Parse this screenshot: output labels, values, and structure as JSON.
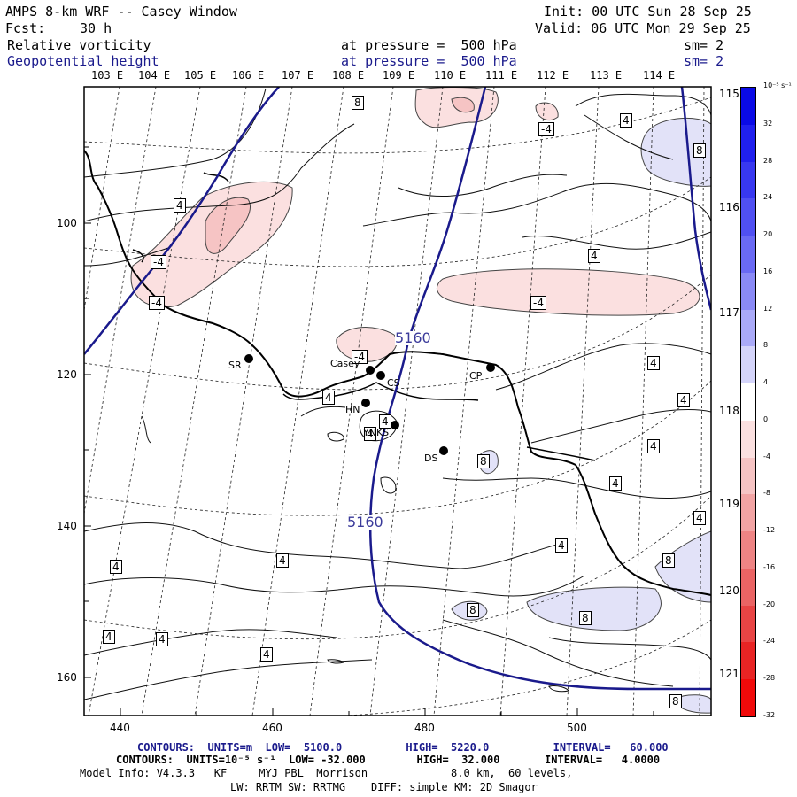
{
  "header": {
    "title": "AMPS 8-km WRF -- Casey Window",
    "init": "Init: 00 UTC Sun 28 Sep 25",
    "fcst_label": "Fcst:",
    "fcst_value": "30 h",
    "valid": "Valid: 06 UTC Mon 29 Sep 25",
    "field1": "Relative vorticity",
    "field1_pressure": "at pressure =  500 hPa",
    "field1_sm": "sm= 2",
    "field2": "Geopotential height",
    "field2_pressure": "at pressure =  500 hPa",
    "field2_sm": "sm= 2"
  },
  "lon_top": [
    "103 E",
    "104 E",
    "105 E",
    "106 E",
    "107 E",
    "108 E",
    "109 E",
    "110 E",
    "111 E",
    "112 E",
    "113 E",
    "114 E"
  ],
  "lon_right": [
    "115 E",
    "116 E",
    "117 E",
    "118 E",
    "119 E",
    "120 E",
    "121 E"
  ],
  "y_ticks": [
    "100",
    "120",
    "140",
    "160"
  ],
  "x_ticks": [
    "440",
    "460",
    "480",
    "500"
  ],
  "colorbar": {
    "unit": "10⁻⁵ s⁻¹",
    "labels": [
      "32",
      "28",
      "24",
      "20",
      "16",
      "12",
      "8",
      "4",
      "0",
      "-4",
      "-8",
      "-12",
      "-16",
      "-20",
      "-24",
      "-28",
      "-32"
    ],
    "colors": [
      "#0a0ae6",
      "#2020ee",
      "#3838f0",
      "#5050f2",
      "#6a6af4",
      "#8a8af6",
      "#aaaaf8",
      "#d4d4fa",
      "#ffffff",
      "#fbe0e0",
      "#f6c4c4",
      "#f2a4a4",
      "#ee8484",
      "#ea6464",
      "#e84444",
      "#e82424",
      "#f00a0a"
    ]
  },
  "contour_labels": {
    "vort": [
      "8",
      "-4",
      "4",
      "8",
      "-4",
      "4",
      "-4",
      "4",
      "-4",
      "4",
      "-4",
      "4",
      "4",
      "4",
      "4",
      "4",
      "8",
      "4",
      "4",
      "4",
      "4",
      "8",
      "4",
      "4",
      "8",
      "4",
      "8",
      "4",
      "8",
      "8"
    ],
    "height": [
      "5160",
      "5160"
    ]
  },
  "stations": [
    {
      "code": "SR"
    },
    {
      "code": "Casey"
    },
    {
      "code": "CS"
    },
    {
      "code": "HN"
    },
    {
      "code": "YNKS"
    },
    {
      "code": "CP"
    },
    {
      "code": "DS"
    }
  ],
  "footer": {
    "line1": "CONTOURS:  UNITS=m  LOW=  5100.0          HIGH=  5220.0          INTERVAL=   60.000",
    "line2": "CONTOURS:  UNITS=10⁻⁵ s⁻¹  LOW= -32.000        HIGH=  32.000       INTERVAL=   4.0000",
    "line3": "Model Info: V4.3.3   KF     MYJ PBL  Morrison             8.0 km,  60 levels,",
    "line4": "LW: RRTM SW: RRTMG    DIFF: simple KM: 2D Smagor"
  }
}
